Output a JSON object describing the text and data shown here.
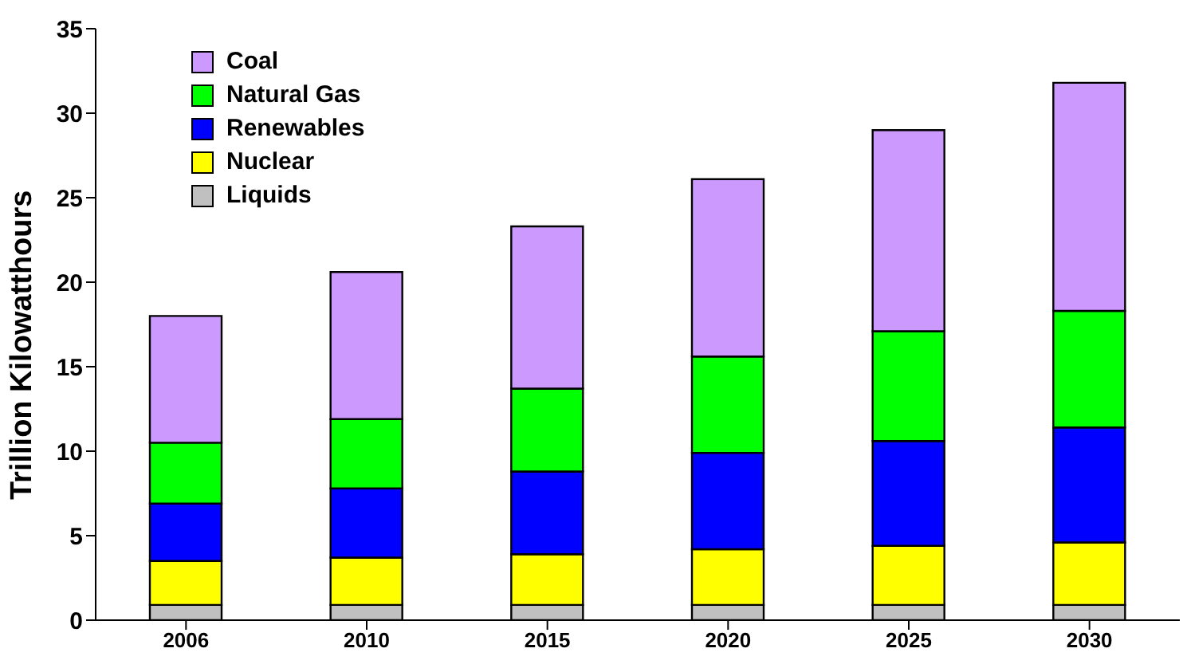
{
  "chart_data": {
    "type": "bar",
    "stacked": true,
    "ylabel": "Trillion Kilowatthours",
    "categories": [
      "2006",
      "2010",
      "2015",
      "2020",
      "2025",
      "2030"
    ],
    "series": [
      {
        "name": "Liquids",
        "color": "#c0c0c0",
        "values": [
          0.9,
          0.9,
          0.9,
          0.9,
          0.9,
          0.9
        ]
      },
      {
        "name": "Nuclear",
        "color": "#ffff00",
        "values": [
          2.6,
          2.8,
          3.0,
          3.3,
          3.5,
          3.7
        ]
      },
      {
        "name": "Renewables",
        "color": "#0000ff",
        "values": [
          3.4,
          4.1,
          4.9,
          5.7,
          6.2,
          6.8
        ]
      },
      {
        "name": "Natural Gas",
        "color": "#00ff00",
        "values": [
          3.6,
          4.1,
          4.9,
          5.7,
          6.5,
          6.9
        ]
      },
      {
        "name": "Coal",
        "color": "#cc99ff",
        "values": [
          7.5,
          8.7,
          9.6,
          10.5,
          11.9,
          13.5
        ]
      }
    ],
    "ylim": [
      0,
      35
    ],
    "yticks": [
      0,
      5,
      10,
      15,
      20,
      25,
      30,
      35
    ],
    "grid": false,
    "legend": "top left"
  }
}
